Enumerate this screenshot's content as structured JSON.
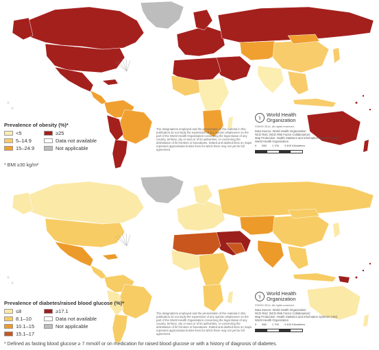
{
  "maps": [
    {
      "legend_title": "Prevalence of obesity (%)*",
      "legend_items": [
        {
          "label": "<5",
          "color": "#fcedb0"
        },
        {
          "label": "≥25",
          "color": "#a4201d"
        },
        {
          "label": "5–14.9",
          "color": "#f8cc6b"
        },
        {
          "label": "Data not available",
          "color": "#ffffff"
        },
        {
          "label": "15–24.9",
          "color": "#f0a030"
        },
        {
          "label": "Not applicable",
          "color": "#bdbdbd"
        }
      ],
      "footnote": "* BMI ≥30 kg/m²",
      "colors": {
        "ocean": "#ffffff",
        "default_land": "#f8cc6b"
      }
    },
    {
      "legend_title": "Prevalence of diabetes/raised blood glucose (%)*",
      "legend_items": [
        {
          "label": "≤8",
          "color": "#fbe9a8"
        },
        {
          "label": "≥17.1",
          "color": "#9c1f1c"
        },
        {
          "label": "8.1–10",
          "color": "#f7cc64"
        },
        {
          "label": "Data not available",
          "color": "#ffffff"
        },
        {
          "label": "10.1–15",
          "color": "#ec9a2a"
        },
        {
          "label": "Not applicable",
          "color": "#bdbdbd"
        },
        {
          "label": "15.1–17",
          "color": "#c9561c"
        }
      ],
      "footnote": "* Defined as fasting blood glucose ≥ 7 mmol/l or on medication for raised blood glucose or with a history of diagnosis of diabetes.",
      "colors": {
        "ocean": "#ffffff",
        "default_land": "#fbe9a8"
      }
    }
  ],
  "who": {
    "org_line1": "World Health",
    "org_line2": "Organization",
    "rights": "©WHO 2014. All rights reserved.",
    "source_lines": [
      "Data Source: World Health Organization",
      "NCD RisC (NCD Risk Factor Collaboration)",
      "Map Production: Health Statistics and Information Systems (HSI)",
      "World Health Organization"
    ],
    "scale_labels": [
      "0",
      "850",
      "1 700",
      "3 400 Kilometers"
    ]
  },
  "disclaimer": "The designations employed and the presentation of the material in this publication do not imply the expression of any opinion whatsoever on the part of the World Health Organization concerning the legal status of any country, territory, city or area or of its authorities, or concerning the delimitation of its frontiers or boundaries. Dotted and dashed lines on maps represent approximate border lines for which there may not yet be full agreement."
}
